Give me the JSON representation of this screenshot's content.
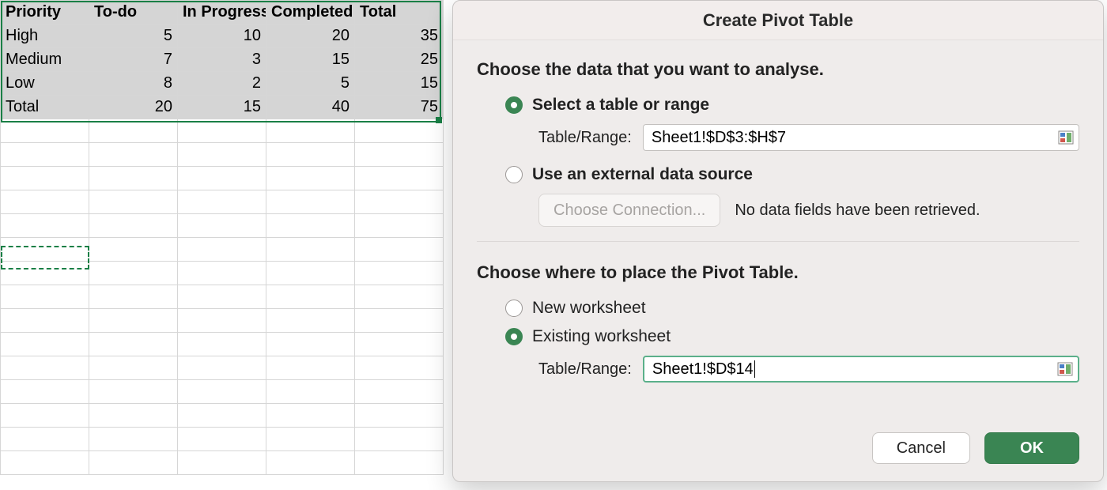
{
  "sheet": {
    "selection_range_ref": "Sheet1!$D$3:$H$7",
    "target_cell_ref": "Sheet1!$D$14",
    "headers": [
      "Priority",
      "To-do",
      "In Progress",
      "Completed",
      "Total"
    ],
    "rows": [
      {
        "label": "High",
        "values": [
          5,
          10,
          20,
          35
        ]
      },
      {
        "label": "Medium",
        "values": [
          7,
          3,
          15,
          25
        ]
      },
      {
        "label": "Low",
        "values": [
          8,
          2,
          5,
          15
        ]
      },
      {
        "label": "Total",
        "values": [
          20,
          15,
          40,
          75
        ]
      }
    ],
    "grid": {
      "cell_bg": "#d5d5d5",
      "border_color": "#d6d6d6",
      "selection_color": "#1a7f46",
      "blank_rows_below": 15
    }
  },
  "dialog": {
    "title": "Create Pivot Table",
    "section1_label": "Choose the data that you want to analyse.",
    "opt_table_range": "Select a table or range",
    "table_range_label": "Table/Range:",
    "table_range_value": "Sheet1!$D$3:$H$7",
    "opt_external": "Use an external data source",
    "choose_connection_label": "Choose Connection...",
    "no_fields_text": "No data fields have been retrieved.",
    "section2_label": "Choose where to place the Pivot Table.",
    "opt_new_ws": "New worksheet",
    "opt_existing_ws": "Existing worksheet",
    "location_label": "Table/Range:",
    "location_value": "Sheet1!$D$14",
    "cancel_label": "Cancel",
    "ok_label": "OK",
    "colors": {
      "dialog_bg": "#efeceb",
      "accent_green": "#3a8553",
      "text": "#222222",
      "disabled_text": "#a7a4a2",
      "input_border": "#c3c0be",
      "focus_border": "#5bb08a",
      "divider": "#dcd8d7"
    },
    "radios": {
      "source_selected": "table_range",
      "placement_selected": "existing_ws"
    }
  }
}
